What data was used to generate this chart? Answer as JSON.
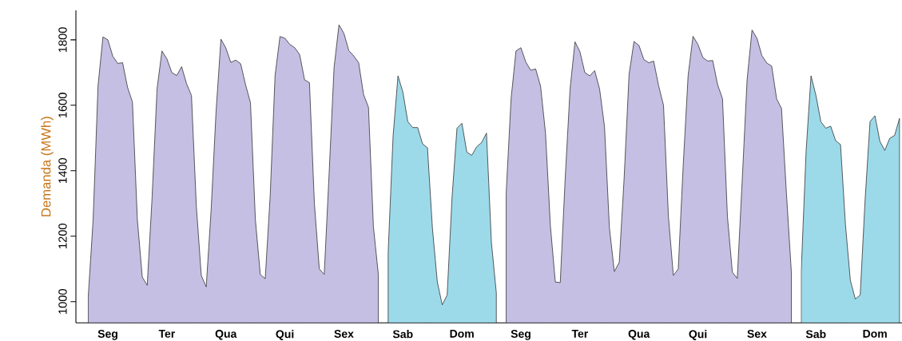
{
  "chart_data": {
    "type": "area",
    "ylabel": "Demanda (MWh)",
    "ylim": [
      935,
      1890
    ],
    "yticks": [
      1000,
      1200,
      1400,
      1600,
      1800
    ],
    "categories": [
      null,
      null,
      null,
      null,
      null,
      null,
      "Seg",
      null,
      null,
      null,
      null,
      null,
      null,
      null,
      null,
      null,
      null,
      null,
      "Ter",
      null,
      null,
      null,
      null,
      null,
      null,
      null,
      null,
      null,
      null,
      null,
      "Qua",
      null,
      null,
      null,
      null,
      null,
      null,
      null,
      null,
      null,
      null,
      null,
      "Qui",
      null,
      null,
      null,
      null,
      null,
      null,
      null,
      null,
      null,
      null,
      null,
      "Sex",
      null,
      null,
      null,
      null,
      null,
      null,
      null,
      null,
      null,
      null,
      null,
      "Sab",
      null,
      null,
      null,
      null,
      null,
      null,
      null,
      null,
      null,
      null,
      null,
      "Dom",
      null,
      null,
      null,
      null,
      null,
      null,
      null,
      null,
      null,
      null,
      null,
      "Seg",
      null,
      null,
      null,
      null,
      null,
      null,
      null,
      null,
      null,
      null,
      null,
      "Ter",
      null,
      null,
      null,
      null,
      null,
      null,
      null,
      null,
      null,
      null,
      null,
      "Qua",
      null,
      null,
      null,
      null,
      null,
      null,
      null,
      null,
      null,
      null,
      null,
      "Qui",
      null,
      null,
      null,
      null,
      null,
      null,
      null,
      null,
      null,
      null,
      null,
      "Sex",
      null,
      null,
      null,
      null,
      null,
      null,
      null,
      null,
      null,
      null,
      null,
      "Sab",
      null,
      null,
      null,
      null,
      null,
      null,
      null,
      null,
      null,
      null,
      null,
      "Dom",
      null,
      null,
      null,
      null,
      null
    ],
    "series": [
      {
        "color": "#c5bfe4",
        "values": [
          null,
          null,
          1013,
          1250,
          1660,
          1809,
          1800,
          1750,
          1728,
          1730,
          1655,
          1610,
          1250,
          1075,
          1050,
          1320,
          1650,
          1766,
          1742,
          1700,
          1691,
          1718,
          1666,
          1630,
          1290,
          1080,
          1045,
          1280,
          1580,
          1802,
          1775,
          1731,
          1738,
          1727,
          1663,
          1608,
          1250,
          1083,
          1070,
          1320,
          1690,
          1810,
          1805,
          1786,
          1776,
          1755,
          1678,
          1669,
          1300,
          1100,
          1083,
          1393,
          1715,
          1846,
          1820,
          1767,
          1751,
          1730,
          1633,
          1594,
          1230,
          1084,
          null,
          null,
          null,
          null,
          null,
          null,
          null,
          null,
          null,
          null,
          null,
          null,
          null,
          null,
          null,
          null,
          null,
          null,
          null,
          null,
          null,
          null,
          null,
          null,
          null,
          1330,
          1620,
          1766,
          1776,
          1732,
          1707,
          1711,
          1658,
          1516,
          1230,
          1060,
          1058,
          1375,
          1650,
          1794,
          1764,
          1700,
          1690,
          1706,
          1650,
          1535,
          1225,
          1092,
          1120,
          1380,
          1695,
          1795,
          1783,
          1740,
          1730,
          1735,
          1660,
          1600,
          1260,
          1080,
          1100,
          1415,
          1690,
          1811,
          1786,
          1746,
          1735,
          1737,
          1663,
          1620,
          1260,
          1090,
          1071,
          1370,
          1678,
          1830,
          1805,
          1752,
          1729,
          1720,
          1620,
          1590,
          1330,
          1090,
          null,
          null,
          null,
          null,
          null,
          null,
          null,
          null,
          null,
          null,
          null,
          null,
          null,
          null,
          null,
          null,
          null,
          null,
          null,
          null,
          null,
          null
        ]
      },
      {
        "color": "#9cdaea",
        "values": [
          null,
          null,
          null,
          null,
          null,
          null,
          null,
          null,
          null,
          null,
          null,
          null,
          null,
          null,
          null,
          null,
          null,
          null,
          null,
          null,
          null,
          null,
          null,
          null,
          null,
          null,
          null,
          null,
          null,
          null,
          null,
          null,
          null,
          null,
          null,
          null,
          null,
          null,
          null,
          null,
          null,
          null,
          null,
          null,
          null,
          null,
          null,
          null,
          null,
          null,
          null,
          null,
          null,
          null,
          null,
          null,
          null,
          null,
          null,
          null,
          null,
          null,
          null,
          1150,
          1505,
          1690,
          1640,
          1550,
          1532,
          1532,
          1482,
          1470,
          1225,
          1060,
          990,
          1020,
          1320,
          1530,
          1545,
          1457,
          1447,
          1473,
          1486,
          1515,
          1180,
          1027,
          null,
          null,
          null,
          null,
          null,
          null,
          null,
          null,
          null,
          null,
          null,
          null,
          null,
          null,
          null,
          null,
          null,
          null,
          null,
          null,
          null,
          null,
          null,
          null,
          null,
          null,
          null,
          null,
          null,
          null,
          null,
          null,
          null,
          null,
          null,
          null,
          null,
          null,
          null,
          null,
          null,
          null,
          null,
          null,
          null,
          null,
          null,
          null,
          null,
          null,
          null,
          null,
          null,
          null,
          null,
          null,
          null,
          null,
          null,
          null,
          null,
          1090,
          1460,
          1690,
          1630,
          1550,
          1530,
          1536,
          1492,
          1480,
          1235,
          1065,
          1008,
          1020,
          1312,
          1550,
          1568,
          1490,
          1462,
          1499,
          1508,
          1560
        ]
      }
    ]
  }
}
